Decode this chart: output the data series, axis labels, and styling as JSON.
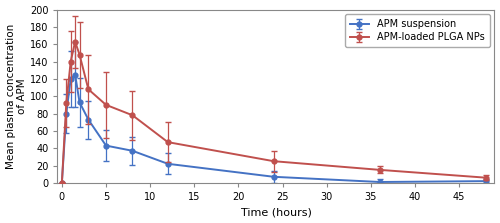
{
  "blue_x": [
    0,
    0.5,
    1,
    1.5,
    2,
    3,
    5,
    8,
    12,
    24,
    36,
    48
  ],
  "blue_y": [
    0,
    80,
    120,
    125,
    93,
    73,
    43,
    37,
    22,
    7,
    1,
    2
  ],
  "blue_yerr": [
    0,
    22,
    32,
    38,
    28,
    22,
    18,
    16,
    12,
    7,
    3,
    2
  ],
  "red_x": [
    0,
    0.5,
    1,
    1.5,
    2,
    3,
    5,
    8,
    12,
    24,
    36,
    48
  ],
  "red_y": [
    0,
    92,
    140,
    163,
    148,
    108,
    90,
    78,
    47,
    25,
    15,
    6
  ],
  "red_yerr": [
    0,
    28,
    35,
    30,
    38,
    40,
    38,
    28,
    23,
    12,
    4,
    3
  ],
  "blue_color": "#4472C4",
  "red_color": "#C0504D",
  "blue_label": "APM suspension",
  "red_label": "APM-loaded PLGA NPs",
  "xlabel": "Time (hours)",
  "ylabel": "Mean plasma concentration\nof APM",
  "ylim": [
    0,
    200
  ],
  "xlim": [
    -0.5,
    49
  ],
  "xticks": [
    0,
    5,
    10,
    15,
    20,
    25,
    30,
    35,
    40,
    45
  ],
  "yticks": [
    0,
    20,
    40,
    60,
    80,
    100,
    120,
    140,
    160,
    180,
    200
  ],
  "figwidth": 5.0,
  "figheight": 2.23,
  "dpi": 100
}
